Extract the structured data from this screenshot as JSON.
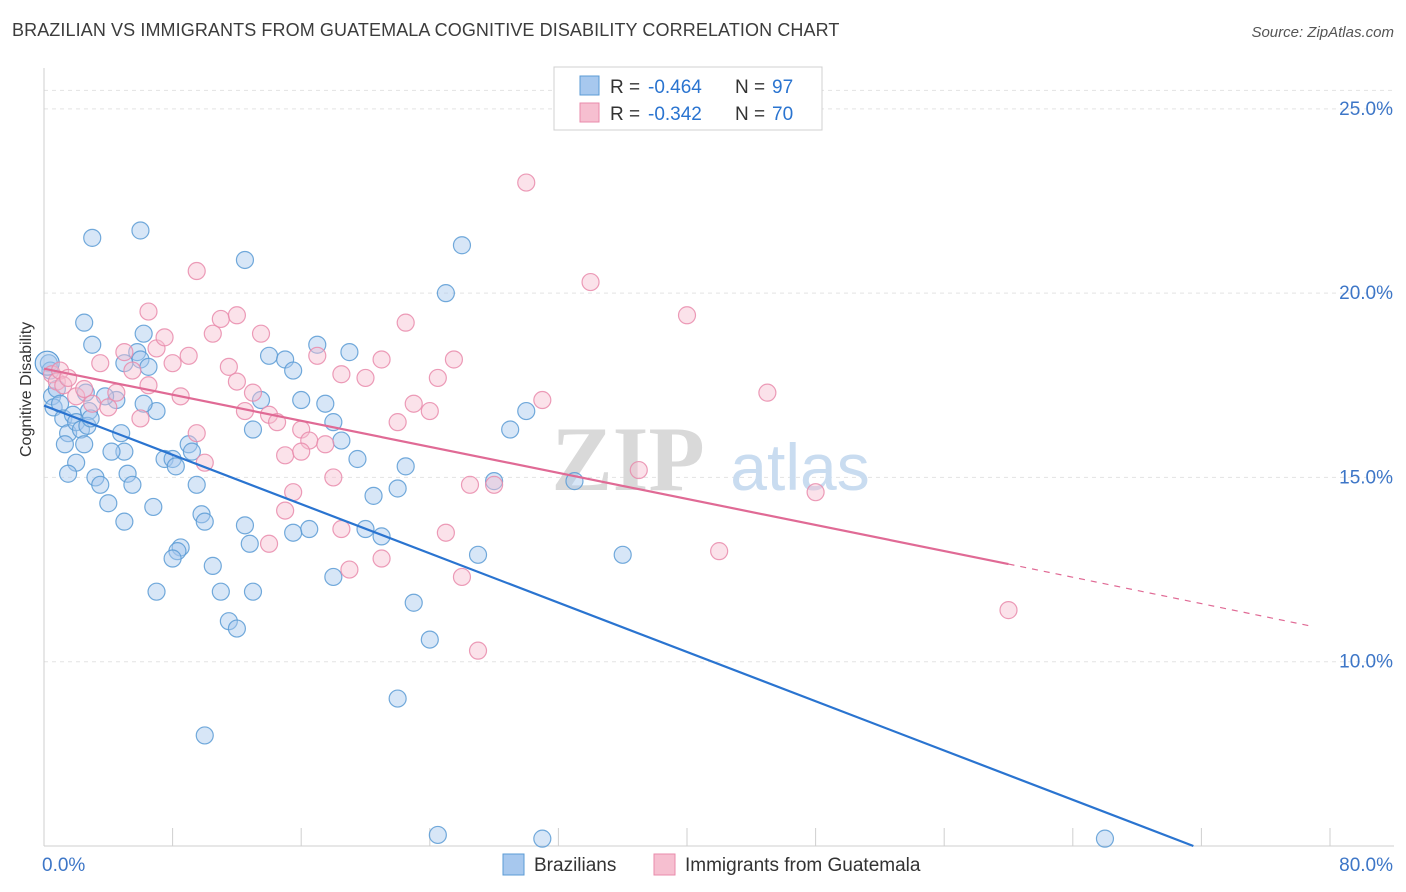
{
  "chart_data": {
    "type": "scatter",
    "title": "BRAZILIAN VS IMMIGRANTS FROM GUATEMALA COGNITIVE DISABILITY CORRELATION CHART",
    "source": "Source: ZipAtlas.com",
    "ylabel": "Cognitive Disability",
    "xlabel": "",
    "watermark": {
      "zip": "ZIP",
      "atlas": "atlas"
    },
    "xlim": [
      0,
      80
    ],
    "ylim": [
      5,
      26
    ],
    "x_tick_labels": [
      {
        "value": 0,
        "label": "0.0%"
      },
      {
        "value": 80,
        "label": "80.0%"
      }
    ],
    "y_tick_labels": [
      {
        "value": 10,
        "label": "10.0%"
      },
      {
        "value": 15,
        "label": "15.0%"
      },
      {
        "value": 20,
        "label": "20.0%"
      },
      {
        "value": 25,
        "label": "25.0%"
      }
    ],
    "grid": true,
    "legend_top": [
      {
        "r_label": "R = ",
        "r_value": "-0.464",
        "n_label": "N = ",
        "n_value": "97"
      },
      {
        "r_label": "R = ",
        "r_value": "-0.342",
        "n_label": "N = ",
        "n_value": "70"
      }
    ],
    "series": [
      {
        "name": "Brazilians",
        "color": "#5b9bd5",
        "fill": "#a7c8ee",
        "line_color": "#2a74d0",
        "trend": {
          "x0": 0,
          "y0": 16.95,
          "x1": 71.5,
          "y1": 5.0,
          "dashed_to": null
        },
        "points": [
          [
            0.3,
            18.1
          ],
          [
            0.4,
            17.9
          ],
          [
            0.5,
            17.2
          ],
          [
            0.6,
            16.9
          ],
          [
            0.8,
            17.4
          ],
          [
            1.0,
            17.0
          ],
          [
            1.2,
            16.6
          ],
          [
            1.5,
            16.2
          ],
          [
            1.8,
            16.7
          ],
          [
            1.3,
            15.9
          ],
          [
            2.0,
            16.5
          ],
          [
            2.3,
            16.3
          ],
          [
            2.6,
            17.3
          ],
          [
            2.8,
            16.8
          ],
          [
            3.0,
            18.6
          ],
          [
            3.2,
            15.0
          ],
          [
            2.5,
            15.9
          ],
          [
            2.7,
            16.4
          ],
          [
            2.9,
            16.6
          ],
          [
            4.5,
            17.1
          ],
          [
            4.8,
            16.2
          ],
          [
            5.0,
            15.7
          ],
          [
            5.2,
            15.1
          ],
          [
            5.5,
            14.8
          ],
          [
            5.8,
            18.4
          ],
          [
            6.0,
            18.2
          ],
          [
            5.0,
            18.1
          ],
          [
            6.2,
            18.9
          ],
          [
            6.5,
            18.0
          ],
          [
            7.0,
            16.8
          ],
          [
            7.5,
            15.5
          ],
          [
            8.0,
            15.5
          ],
          [
            8.2,
            15.3
          ],
          [
            8.5,
            13.1
          ],
          [
            8.3,
            13.0
          ],
          [
            9.0,
            15.9
          ],
          [
            9.2,
            15.7
          ],
          [
            9.5,
            14.8
          ],
          [
            9.8,
            14.0
          ],
          [
            10.0,
            13.8
          ],
          [
            10.5,
            12.6
          ],
          [
            11.0,
            11.9
          ],
          [
            11.5,
            11.1
          ],
          [
            12.0,
            10.9
          ],
          [
            12.5,
            13.7
          ],
          [
            12.8,
            13.2
          ],
          [
            13.0,
            16.3
          ],
          [
            13.5,
            17.1
          ],
          [
            14.0,
            18.3
          ],
          [
            15.0,
            18.2
          ],
          [
            15.5,
            17.9
          ],
          [
            16.0,
            17.1
          ],
          [
            17.0,
            18.6
          ],
          [
            17.5,
            17.0
          ],
          [
            18.0,
            16.5
          ],
          [
            19.0,
            18.4
          ],
          [
            18.5,
            16.0
          ],
          [
            20.0,
            13.6
          ],
          [
            20.5,
            14.5
          ],
          [
            21.0,
            13.4
          ],
          [
            22.0,
            14.7
          ],
          [
            22.5,
            15.3
          ],
          [
            23.0,
            11.6
          ],
          [
            24.0,
            10.6
          ],
          [
            25.0,
            20.0
          ],
          [
            26.0,
            21.3
          ],
          [
            27.0,
            12.9
          ],
          [
            28.0,
            14.9
          ],
          [
            29.0,
            16.3
          ],
          [
            30.0,
            16.8
          ],
          [
            2.5,
            19.2
          ],
          [
            3.0,
            21.5
          ],
          [
            6.0,
            21.7
          ],
          [
            10.0,
            8.0
          ],
          [
            12.5,
            20.9
          ],
          [
            13.0,
            11.9
          ],
          [
            18.0,
            12.3
          ],
          [
            16.5,
            13.6
          ],
          [
            15.5,
            13.5
          ],
          [
            7.0,
            11.9
          ],
          [
            4.0,
            14.3
          ],
          [
            5.0,
            13.8
          ],
          [
            6.8,
            14.2
          ],
          [
            8.0,
            12.8
          ],
          [
            3.5,
            14.8
          ],
          [
            2.0,
            15.4
          ],
          [
            1.5,
            15.1
          ],
          [
            4.2,
            15.7
          ],
          [
            6.2,
            17.0
          ],
          [
            3.8,
            17.2
          ],
          [
            36.0,
            12.9
          ],
          [
            33.0,
            14.9
          ],
          [
            22.0,
            9.0
          ],
          [
            31.0,
            5.2
          ],
          [
            24.5,
            5.3
          ],
          [
            66.0,
            5.2
          ],
          [
            19.5,
            15.5
          ]
        ]
      },
      {
        "name": "Immigrants from Guatemala",
        "color": "#e98bab",
        "fill": "#f6bfd0",
        "line_color": "#e06a95",
        "trend": {
          "x0": 0,
          "y0": 17.95,
          "x1": 60.0,
          "y1": 12.65,
          "dashed_to": {
            "x": 79.0,
            "y": 10.95
          }
        },
        "points": [
          [
            0.5,
            17.8
          ],
          [
            0.8,
            17.6
          ],
          [
            1.0,
            17.9
          ],
          [
            1.2,
            17.5
          ],
          [
            1.5,
            17.7
          ],
          [
            2.0,
            17.2
          ],
          [
            2.5,
            17.4
          ],
          [
            3.0,
            17.0
          ],
          [
            3.5,
            18.1
          ],
          [
            4.0,
            16.9
          ],
          [
            4.5,
            17.3
          ],
          [
            5.0,
            18.4
          ],
          [
            5.5,
            17.9
          ],
          [
            6.0,
            16.6
          ],
          [
            6.5,
            17.5
          ],
          [
            7.0,
            18.5
          ],
          [
            7.5,
            18.8
          ],
          [
            8.0,
            18.1
          ],
          [
            8.5,
            17.2
          ],
          [
            9.0,
            18.3
          ],
          [
            9.5,
            16.2
          ],
          [
            10.0,
            15.4
          ],
          [
            10.5,
            18.9
          ],
          [
            11.0,
            19.3
          ],
          [
            11.5,
            18.0
          ],
          [
            12.0,
            17.6
          ],
          [
            12.5,
            16.8
          ],
          [
            13.0,
            17.3
          ],
          [
            13.5,
            18.9
          ],
          [
            14.0,
            16.7
          ],
          [
            14.5,
            16.5
          ],
          [
            15.0,
            15.6
          ],
          [
            15.5,
            14.6
          ],
          [
            16.0,
            16.3
          ],
          [
            16.5,
            16.0
          ],
          [
            17.0,
            18.3
          ],
          [
            17.5,
            15.9
          ],
          [
            18.0,
            15.0
          ],
          [
            18.5,
            13.6
          ],
          [
            19.0,
            12.5
          ],
          [
            20.0,
            17.7
          ],
          [
            21.0,
            18.2
          ],
          [
            22.0,
            16.5
          ],
          [
            23.0,
            17.0
          ],
          [
            24.0,
            16.8
          ],
          [
            25.0,
            13.5
          ],
          [
            26.0,
            12.3
          ],
          [
            27.0,
            10.3
          ],
          [
            28.0,
            14.8
          ],
          [
            30.0,
            23.0
          ],
          [
            6.5,
            19.5
          ],
          [
            9.5,
            20.6
          ],
          [
            12.0,
            19.4
          ],
          [
            15.0,
            14.1
          ],
          [
            16.0,
            15.7
          ],
          [
            18.5,
            17.8
          ],
          [
            22.5,
            19.2
          ],
          [
            24.5,
            17.7
          ],
          [
            25.5,
            18.2
          ],
          [
            26.5,
            14.8
          ],
          [
            31.0,
            17.1
          ],
          [
            34.0,
            20.3
          ],
          [
            40.0,
            19.4
          ],
          [
            42.0,
            13.0
          ],
          [
            45.0,
            17.3
          ],
          [
            37.0,
            15.2
          ],
          [
            48.0,
            14.6
          ],
          [
            60.0,
            11.4
          ],
          [
            14.0,
            13.2
          ],
          [
            21.0,
            12.8
          ]
        ]
      }
    ]
  },
  "legend_bottom": [
    {
      "label": "Brazilians"
    },
    {
      "label": "Immigrants from Guatemala"
    }
  ]
}
